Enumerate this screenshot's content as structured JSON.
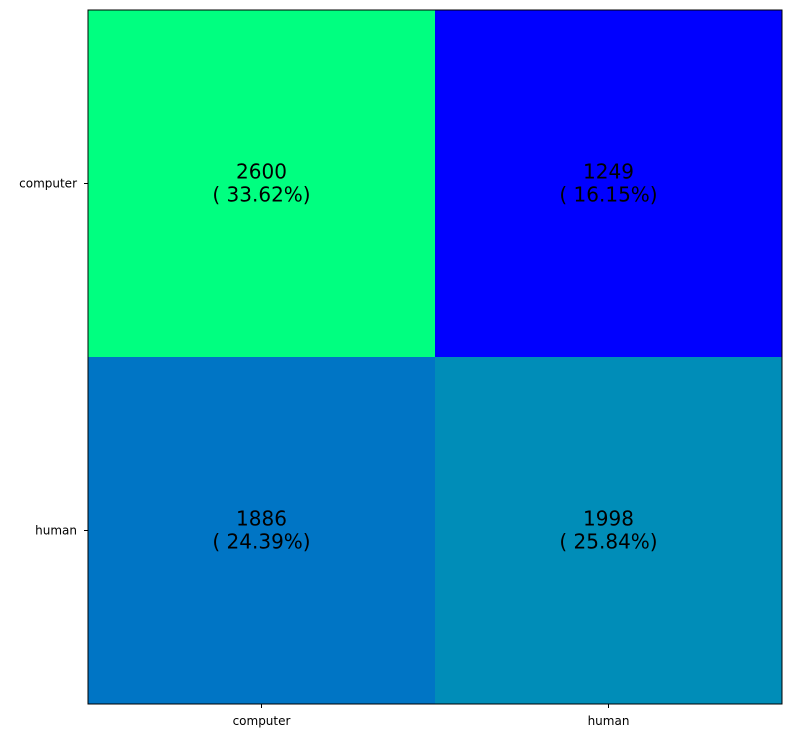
{
  "chart_data": {
    "type": "heatmap",
    "title": "",
    "xlabel": "",
    "ylabel": "",
    "x_categories": [
      "computer",
      "human"
    ],
    "y_categories": [
      "computer",
      "human"
    ],
    "colormap": "winter",
    "grid": false,
    "legend": "none",
    "cells": [
      {
        "row": 0,
        "col": 0,
        "count": 2600,
        "percent": 33.62,
        "label_line1": "2600",
        "label_line2": "( 33.62%)",
        "color": "#00ff80"
      },
      {
        "row": 0,
        "col": 1,
        "count": 1249,
        "percent": 16.15,
        "label_line1": "1249",
        "label_line2": "( 16.15%)",
        "color": "#0000ff"
      },
      {
        "row": 1,
        "col": 0,
        "count": 1886,
        "percent": 24.39,
        "label_line1": "1886",
        "label_line2": "( 24.39%)",
        "color": "#0075c5"
      },
      {
        "row": 1,
        "col": 1,
        "count": 1998,
        "percent": 25.84,
        "label_line1": "1998",
        "label_line2": "( 25.84%)",
        "color": "#008db8"
      }
    ]
  }
}
